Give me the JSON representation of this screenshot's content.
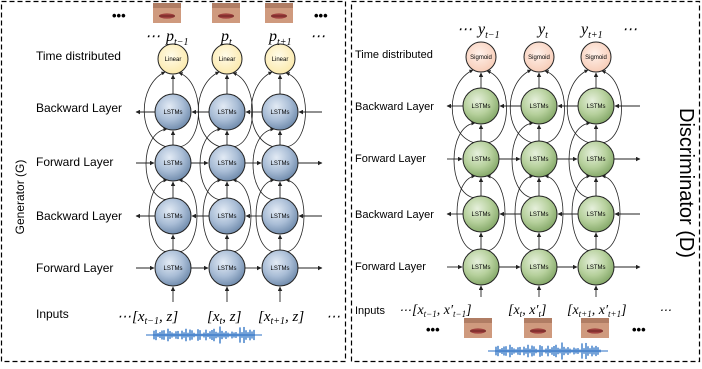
{
  "colors": {
    "lstm_generator": "#9fb6d1",
    "lstm_generator_dark": "#6a86a8",
    "lstm_discriminator": "#b3cf98",
    "lstm_discriminator_dark": "#7fa463",
    "linear_node": "#fff4c4",
    "sigmoid_node": "#fadbc9",
    "audio_wave": "#2a6fc4",
    "face_skin": "#cf9a7e",
    "face_lips": "#a0403e"
  },
  "icons": [
    "face-thumbnail-icon",
    "audio-waveform-icon",
    "ellipsis-icon"
  ],
  "generator": {
    "title": "Generator (G)",
    "row_labels": {
      "time_distributed": "Time distributed",
      "backward_top": "Backward Layer",
      "forward_top": "Forward Layer",
      "backward_bottom": "Backward Layer",
      "forward_bottom": "Forward Layer",
      "inputs": "Inputs"
    },
    "output_node_label": "Linear",
    "lstm_node_label": "LSTMs",
    "outputs": {
      "left_ellipsis": "⋯",
      "items": [
        {
          "base": "p",
          "sub": "t−1"
        },
        {
          "base": "p",
          "sub": "t"
        },
        {
          "base": "p",
          "sub": "t+1"
        }
      ],
      "right_ellipsis": "⋯"
    },
    "top_ellipsis_left": "•••",
    "top_ellipsis_right": "•••",
    "inputs": {
      "left_ellipsis": "⋯",
      "items": [
        {
          "open": "[x",
          "sub": "t−1",
          "rest": ", z]"
        },
        {
          "open": "[x",
          "sub": "t",
          "rest": ", z]"
        },
        {
          "open": "[x",
          "sub": "t+1",
          "rest": ", z]"
        }
      ],
      "right_ellipsis": "⋯"
    }
  },
  "discriminator": {
    "title": "Discriminator (D)",
    "row_labels": {
      "time_distributed": "Time distributed",
      "backward_top": "Backward Layer",
      "forward_top": "Forward Layer",
      "backward_bottom": "Backward Layer",
      "forward_bottom": "Forward Layer",
      "inputs": "Inputs"
    },
    "output_node_label": "Sigmoid",
    "lstm_node_label": "LSTMs",
    "outputs": {
      "left_ellipsis": "⋯",
      "items": [
        {
          "base": "y",
          "sub": "t−1"
        },
        {
          "base": "y",
          "sub": "t"
        },
        {
          "base": "y",
          "sub": "t+1"
        }
      ],
      "right_ellipsis": "⋯"
    },
    "inputs": {
      "left_ellipsis": "⋯",
      "items": [
        {
          "open": "[x",
          "sub": "t−1",
          "mid": ", x′",
          "sub2": "t−1",
          "close": "]"
        },
        {
          "open": "[x",
          "sub": "t",
          "mid": ", x′",
          "sub2": "t",
          "close": "]"
        },
        {
          "open": "[x",
          "sub": "t+1",
          "mid": ", x′",
          "sub2": "t+1",
          "close": "]"
        }
      ],
      "right_ellipsis": "⋯"
    },
    "bottom_ellipsis_left": "•••",
    "bottom_ellipsis_right": "•••"
  }
}
